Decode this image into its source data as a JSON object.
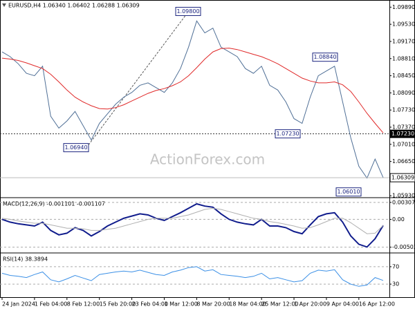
{
  "chart_data": [
    {
      "type": "line",
      "title": "EURUSD,H4 1.06340 1.06402 1.06288 1.06309",
      "watermark": "ActionForex.com",
      "ylim": [
        1.0589,
        1.1004
      ],
      "yticks": [
        {
          "value": 1.0989,
          "label": "1.09890"
        },
        {
          "value": 1.0953,
          "label": "1.09530"
        },
        {
          "value": 1.0917,
          "label": "1.09170"
        },
        {
          "value": 1.0881,
          "label": "1.08810"
        },
        {
          "value": 1.0845,
          "label": "1.08450"
        },
        {
          "value": 1.0809,
          "label": "1.08090"
        },
        {
          "value": 1.0773,
          "label": "1.07730"
        },
        {
          "value": 1.0737,
          "label": "1.07370"
        },
        {
          "value": 1.0701,
          "label": "1.07010"
        },
        {
          "value": 1.0665,
          "label": "1.06650"
        },
        {
          "value": 1.0593,
          "label": "1.05930"
        }
      ],
      "hline": {
        "value": 1.0723,
        "label": "1.07230"
      },
      "last_price": 1.06309,
      "annotations": [
        {
          "value": 1.0694,
          "label": "1.06940"
        },
        {
          "value": 1.098,
          "label": "1.09800"
        },
        {
          "value": 1.0723,
          "label": "1.07230"
        },
        {
          "value": 1.0884,
          "label": "1.08840"
        },
        {
          "value": 1.0601,
          "label": "1.06010"
        }
      ],
      "series": [
        {
          "name": "EURUSD",
          "color": "#4f6f96",
          "values": [
            1.0895,
            1.0885,
            1.087,
            1.085,
            1.0845,
            1.0865,
            1.076,
            1.0735,
            1.075,
            1.077,
            1.074,
            1.071,
            1.0745,
            1.0765,
            1.0785,
            1.08,
            1.081,
            1.0825,
            1.083,
            1.082,
            1.081,
            1.083,
            1.086,
            1.0905,
            1.096,
            1.0935,
            1.0945,
            1.0905,
            1.0895,
            1.0885,
            1.086,
            1.085,
            1.0865,
            1.0825,
            1.0815,
            1.079,
            1.0755,
            1.0745,
            1.08,
            1.0845,
            1.0855,
            1.0865,
            1.079,
            1.0715,
            1.0655,
            1.063,
            1.067,
            1.06309
          ]
        },
        {
          "name": "MA",
          "color": "#e02828",
          "values": [
            1.0882,
            1.088,
            1.0877,
            1.0872,
            1.0866,
            1.086,
            1.0848,
            1.0832,
            1.0815,
            1.08,
            1.079,
            1.0782,
            1.0776,
            1.0775,
            1.0778,
            1.0784,
            1.0792,
            1.08,
            1.0808,
            1.0814,
            1.0818,
            1.0824,
            1.0832,
            1.0845,
            1.0862,
            1.088,
            1.0895,
            1.0902,
            1.0903,
            1.09,
            1.0895,
            1.089,
            1.0885,
            1.0878,
            1.087,
            1.086,
            1.085,
            1.084,
            1.0834,
            1.083,
            1.083,
            1.0832,
            1.0826,
            1.0812,
            1.079,
            1.0766,
            1.0745,
            1.0725
          ]
        }
      ]
    },
    {
      "type": "line",
      "title": "MACD(12,26,9) -0.001101 -0.001107",
      "ylim": [
        -0.00607,
        0.0038
      ],
      "yticks": [
        0.003071,
        {
          "value": 0,
          "label": "0.00"
        },
        -0.005025
      ],
      "series": [
        {
          "name": "MACD",
          "color": "#101c8c",
          "values": [
            0,
            -0.0005,
            -0.0008,
            -0.001,
            -0.0012,
            -0.0005,
            -0.002,
            -0.0028,
            -0.0025,
            -0.0015,
            -0.002,
            -0.003,
            -0.0022,
            -0.0012,
            -0.0005,
            0.0002,
            0.0006,
            0.001,
            0.0008,
            0.0002,
            -0.0002,
            0.0005,
            0.0012,
            0.002,
            0.0028,
            0.0024,
            0.0022,
            0.001,
            0,
            -0.0005,
            -0.0008,
            -0.001,
            0,
            -0.0012,
            -0.0012,
            -0.0015,
            -0.0022,
            -0.0026,
            -0.001,
            0.0005,
            0.001,
            0.0012,
            -0.0005,
            -0.003,
            -0.0045,
            -0.005,
            -0.0035,
            -0.001101
          ]
        },
        {
          "name": "Signal",
          "color": "#b0b0b0",
          "values": [
            0.0002,
            0,
            -0.0003,
            -0.0005,
            -0.0007,
            -0.0007,
            -0.001,
            -0.0013,
            -0.0016,
            -0.0016,
            -0.0017,
            -0.002,
            -0.002,
            -0.0018,
            -0.0016,
            -0.0012,
            -0.0008,
            -0.0004,
            0,
            0.0002,
            0.0002,
            0.0002,
            0.0005,
            0.0008,
            0.0013,
            0.0018,
            0.002,
            0.0018,
            0.0014,
            0.001,
            0.0006,
            0.0002,
            0,
            -0.0004,
            -0.0006,
            -0.0009,
            -0.0012,
            -0.0016,
            -0.0015,
            -0.001,
            -0.0004,
            0.0002,
            0.0002,
            -0.0006,
            -0.0016,
            -0.0026,
            -0.0025,
            -0.001107
          ]
        }
      ]
    },
    {
      "type": "line",
      "title": "RSI(14) 38.3894",
      "ylim": [
        0,
        100
      ],
      "yticks": [
        70,
        30
      ],
      "x": [
        "24 Jan 2024",
        null,
        null,
        null,
        "1 Feb 04:00",
        null,
        null,
        null,
        "8 Feb 12:00",
        null,
        null,
        null,
        "15 Feb 20:00",
        null,
        null,
        null,
        "23 Feb 04:00",
        null,
        null,
        null,
        "1 Mar 12:00",
        null,
        null,
        null,
        "8 Mar 20:00",
        null,
        null,
        null,
        "18 Mar 04:00",
        null,
        null,
        null,
        "25 Mar 12:00",
        null,
        null,
        null,
        "1 Apr 20:00",
        null,
        null,
        null,
        "9 Apr 04:00",
        null,
        null,
        null,
        "16 Apr 12:00",
        null,
        null,
        null
      ],
      "series": [
        {
          "name": "RSI",
          "color": "#3a8fe6",
          "values": [
            55,
            50,
            48,
            45,
            52,
            58,
            40,
            35,
            42,
            50,
            44,
            38,
            52,
            55,
            58,
            60,
            58,
            62,
            57,
            52,
            50,
            58,
            62,
            68,
            70,
            60,
            63,
            52,
            50,
            48,
            45,
            48,
            55,
            42,
            45,
            40,
            35,
            38,
            55,
            62,
            60,
            63,
            40,
            30,
            25,
            28,
            45,
            38.3894
          ]
        }
      ]
    }
  ]
}
